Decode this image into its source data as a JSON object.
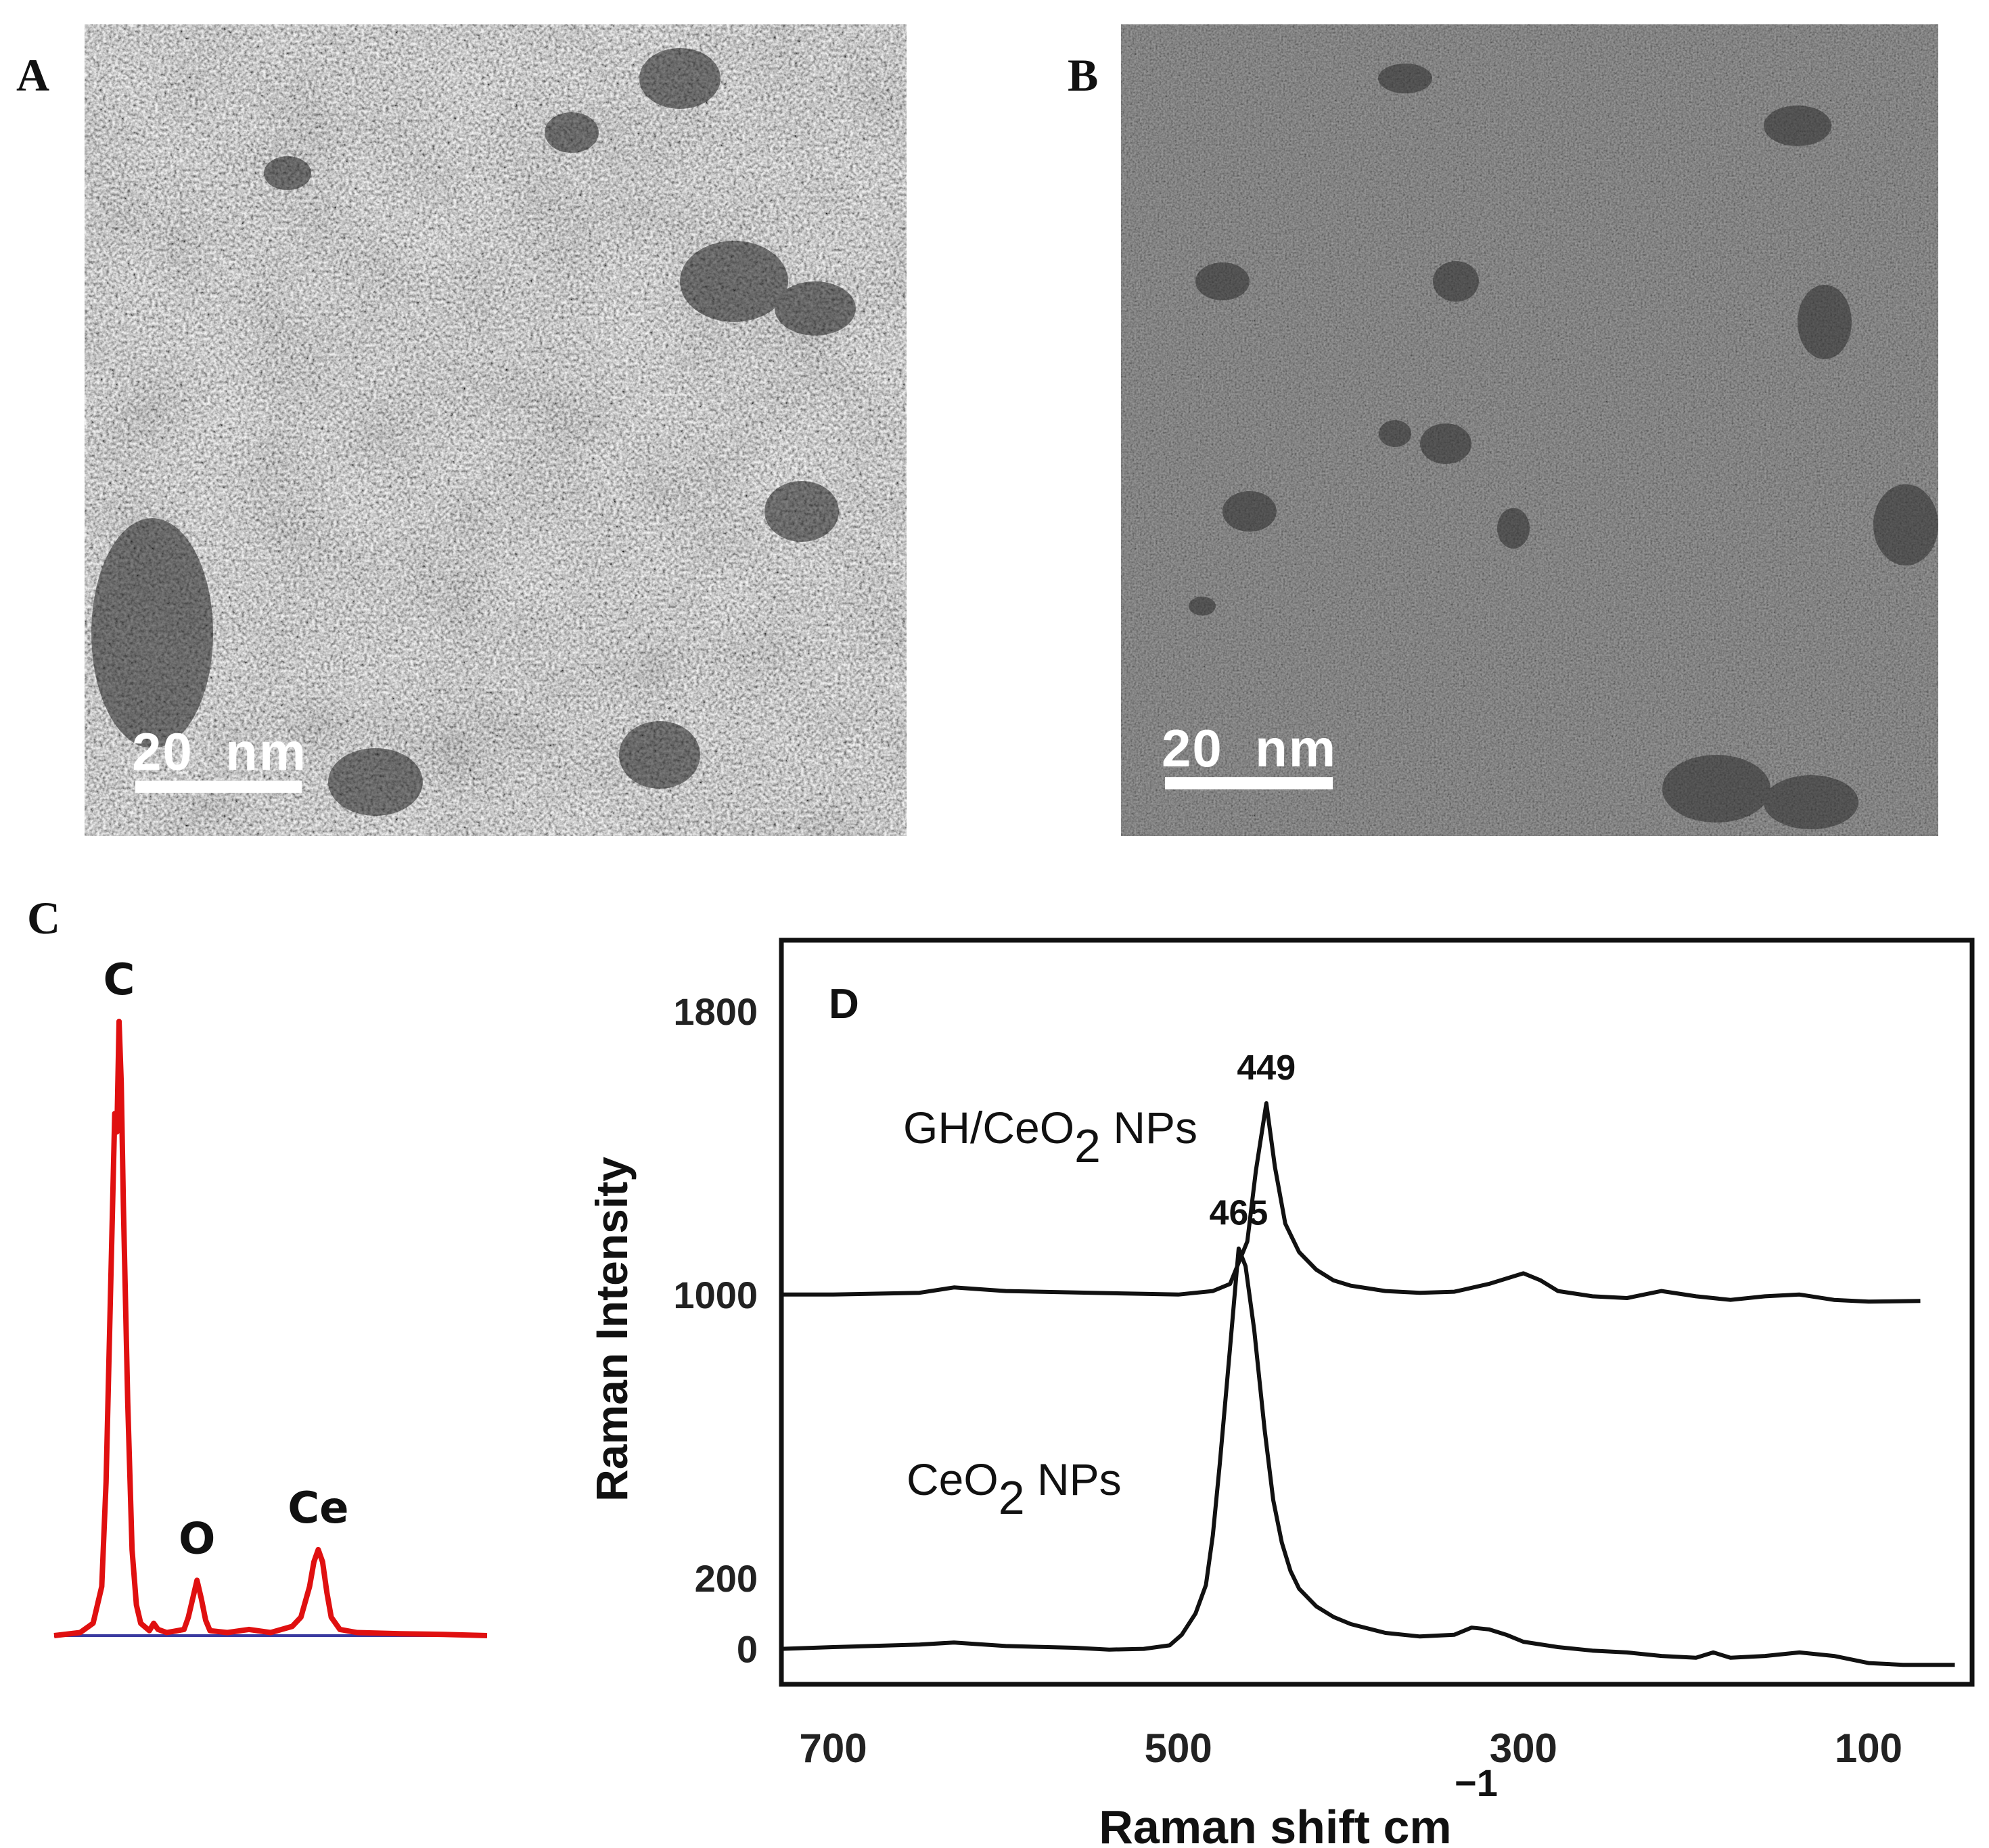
{
  "figure": {
    "panels": {
      "a": {
        "letter": "A",
        "scale_bar": "20  nm"
      },
      "b": {
        "letter": "B",
        "scale_bar": "20  nm"
      },
      "c": {
        "letter": "C"
      },
      "d": {
        "letter": "D"
      }
    }
  },
  "chart_data": [
    {
      "type": "line",
      "panel": "C",
      "title": "",
      "xlabel": "",
      "ylabel": "",
      "color": "#e01010",
      "baseline_color": "#3a3aa0",
      "xlim": [
        0,
        100
      ],
      "ylim": [
        0,
        100
      ],
      "peak_labels": [
        {
          "label": "C",
          "x": 15,
          "y": 100
        },
        {
          "label": "O",
          "x": 33,
          "y": 9
        },
        {
          "label": "Ce",
          "x": 61,
          "y": 14
        }
      ],
      "series": [
        {
          "x": [
            0,
            6,
            9,
            11,
            12,
            13,
            14,
            14.5,
            15,
            15.5,
            16,
            17,
            18,
            19,
            20,
            22,
            23,
            24,
            26,
            30,
            31,
            32,
            33,
            34,
            35,
            36,
            40,
            45,
            50,
            55,
            57,
            59,
            60,
            61,
            62,
            63,
            64,
            66,
            70,
            80,
            90,
            100
          ],
          "y": [
            0,
            0.5,
            2,
            8,
            25,
            55,
            85,
            82,
            100,
            90,
            70,
            38,
            14,
            5,
            2,
            0.8,
            2,
            1,
            0.5,
            1,
            3,
            6,
            9,
            6,
            2.5,
            0.8,
            0.5,
            1,
            0.5,
            1.5,
            3,
            8,
            12,
            14,
            12,
            7,
            3,
            1,
            0.5,
            0.3,
            0.2,
            0
          ]
        }
      ]
    },
    {
      "type": "line",
      "panel": "D",
      "title": "",
      "xlabel": "Raman shift cm",
      "xlabel_superscript": "−1",
      "ylabel": "Raman Intensity",
      "xlim": [
        730,
        40
      ],
      "ylim": [
        -100,
        2000
      ],
      "x_ticks": [
        700,
        500,
        300,
        100
      ],
      "y_ticks": [
        0,
        200,
        1000,
        1800
      ],
      "grid": false,
      "series": [
        {
          "name": "GH/CeO2 NPs",
          "name_main": "GH/CeO",
          "name_sub": "2",
          "name_tail": " NPs",
          "peak": 449,
          "peak_label": "449",
          "x": [
            730,
            700,
            650,
            630,
            600,
            550,
            520,
            500,
            480,
            470,
            460,
            455,
            449,
            444,
            438,
            430,
            420,
            410,
            400,
            380,
            360,
            340,
            320,
            300,
            290,
            280,
            260,
            240,
            220,
            200,
            180,
            160,
            140,
            120,
            100,
            70
          ],
          "y": [
            1000,
            1000,
            1005,
            1020,
            1010,
            1005,
            1002,
            1000,
            1010,
            1030,
            1150,
            1350,
            1540,
            1360,
            1200,
            1120,
            1070,
            1040,
            1025,
            1010,
            1005,
            1008,
            1030,
            1060,
            1040,
            1010,
            995,
            990,
            1010,
            995,
            985,
            995,
            1000,
            985,
            980,
            982
          ]
        },
        {
          "name": "CeO2 NPs",
          "name_main": "CeO",
          "name_sub": "2",
          "name_tail": " NPs",
          "peak": 465,
          "peak_label": "465",
          "x": [
            730,
            700,
            650,
            630,
            600,
            560,
            540,
            520,
            505,
            498,
            490,
            484,
            480,
            476,
            470,
            465,
            461,
            456,
            450,
            445,
            440,
            435,
            430,
            420,
            410,
            400,
            380,
            360,
            340,
            330,
            320,
            310,
            300,
            280,
            260,
            240,
            220,
            200,
            190,
            180,
            160,
            140,
            120,
            100,
            80,
            50
          ],
          "y": [
            0,
            5,
            12,
            18,
            8,
            3,
            -2,
            0,
            10,
            40,
            100,
            180,
            320,
            520,
            850,
            1130,
            1080,
            900,
            620,
            420,
            300,
            220,
            170,
            120,
            90,
            70,
            45,
            35,
            40,
            60,
            55,
            40,
            20,
            5,
            -5,
            -10,
            -20,
            -25,
            -10,
            -25,
            -20,
            -10,
            -20,
            -40,
            -45,
            -45
          ]
        }
      ]
    }
  ]
}
